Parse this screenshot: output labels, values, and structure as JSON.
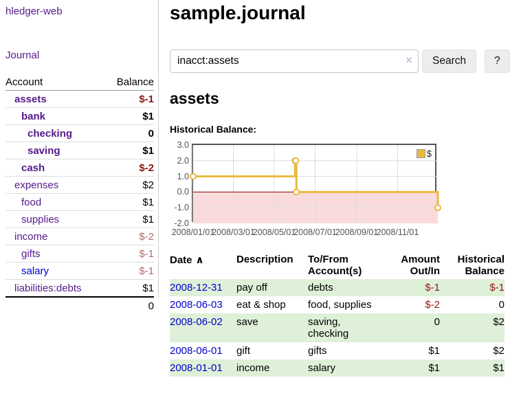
{
  "app": {
    "title": "hledger-web"
  },
  "sidebar": {
    "journal_link": "Journal",
    "accounts_table": {
      "account_header": "Account",
      "balance_header": "Balance",
      "rows": [
        {
          "name": "assets",
          "balance": "$-1",
          "indent": 1,
          "bold": true,
          "amount_class": "neg"
        },
        {
          "name": "bank",
          "balance": "$1",
          "indent": 2,
          "bold": true,
          "amount_class": ""
        },
        {
          "name": "checking",
          "balance": "0",
          "indent": 3,
          "bold": true,
          "amount_class": ""
        },
        {
          "name": "saving",
          "balance": "$1",
          "indent": 3,
          "bold": true,
          "amount_class": ""
        },
        {
          "name": "cash",
          "balance": "$-2",
          "indent": 2,
          "bold": true,
          "amount_class": "neg"
        },
        {
          "name": "expenses",
          "balance": "$2",
          "indent": 1,
          "bold": false,
          "amount_class": ""
        },
        {
          "name": "food",
          "balance": "$1",
          "indent": 2,
          "bold": false,
          "amount_class": ""
        },
        {
          "name": "supplies",
          "balance": "$1",
          "indent": 2,
          "bold": false,
          "amount_class": ""
        },
        {
          "name": "income",
          "balance": "$-2",
          "indent": 1,
          "bold": false,
          "amount_class": "negmuted"
        },
        {
          "name": "gifts",
          "balance": "$-1",
          "indent": 2,
          "bold": false,
          "amount_class": "negmuted"
        },
        {
          "name": "salary",
          "balance": "$-1",
          "indent": 2,
          "bold": false,
          "amount_class": "negmuted",
          "link_style": "blue"
        },
        {
          "name": "liabilities:debts",
          "balance": "$1",
          "indent": 1,
          "bold": false,
          "amount_class": ""
        }
      ],
      "total": "0"
    }
  },
  "main": {
    "title": "sample.journal",
    "search": {
      "value": "inacct:assets",
      "clear_icon": "×",
      "button_label": "Search",
      "help_label": "?"
    },
    "account_heading": "assets",
    "chart_title": "Historical Balance:"
  },
  "chart_data": {
    "type": "line",
    "style": "step",
    "title": "Historical Balance:",
    "series": [
      {
        "name": "$",
        "color": "#e8ba40",
        "points": [
          [
            "2008-01-01",
            1
          ],
          [
            "2008-06-01",
            2
          ],
          [
            "2008-06-02",
            2
          ],
          [
            "2008-06-03",
            0
          ],
          [
            "2008-12-31",
            -1
          ]
        ]
      }
    ],
    "xlim": [
      "2008-01-01",
      "2008-12-31"
    ],
    "ylim": [
      -2,
      3
    ],
    "x_ticks": [
      "2008/01/01",
      "2008/03/01",
      "2008/05/01",
      "2008/07/01",
      "2008/09/01",
      "2008/11/01"
    ],
    "y_ticks": [
      "3.0",
      "2.0",
      "1.0",
      "0.0",
      "-1.0",
      "-2.0"
    ],
    "grid": true,
    "negative_region_color": "#fadbdb",
    "zero_line_color": "#8b0000",
    "grid_color": "#dcdcdc",
    "legend": {
      "label": "$",
      "position": "top-right"
    }
  },
  "register_table": {
    "headers": {
      "date": "Date",
      "sort_icon": "∧",
      "description": "Description",
      "accounts": "To/From Account(s)",
      "amount": "Amount Out/In",
      "balance": "Historical Balance"
    },
    "rows": [
      {
        "date": "2008-12-31",
        "description": "pay off",
        "accounts": "debts",
        "amount": "$-1",
        "amount_neg": true,
        "balance": "$-1",
        "balance_neg": true,
        "shade": "green"
      },
      {
        "date": "2008-06-03",
        "description": "eat & shop",
        "accounts": "food, supplies",
        "amount": "$-2",
        "amount_neg": true,
        "balance": "0",
        "balance_neg": false,
        "shade": "white"
      },
      {
        "date": "2008-06-02",
        "description": "save",
        "accounts": "saving, checking",
        "amount": "0",
        "amount_neg": false,
        "balance": "$2",
        "balance_neg": false,
        "shade": "green"
      },
      {
        "date": "2008-06-01",
        "description": "gift",
        "accounts": "gifts",
        "amount": "$1",
        "amount_neg": false,
        "balance": "$2",
        "balance_neg": false,
        "shade": "white"
      },
      {
        "date": "2008-01-01",
        "description": "income",
        "accounts": "salary",
        "amount": "$1",
        "amount_neg": false,
        "balance": "$1",
        "balance_neg": false,
        "shade": "green"
      }
    ]
  }
}
